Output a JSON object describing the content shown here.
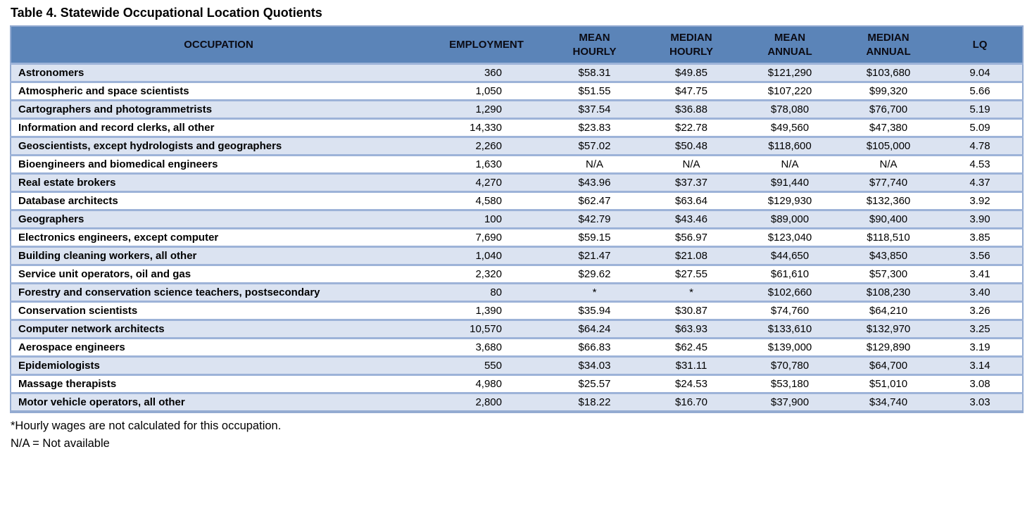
{
  "title": "Table 4. Statewide Occupational Location Quotients",
  "colors": {
    "header_bg": "#5b84b8",
    "alt_row_bg": "#dbe3f1",
    "row_border": "#9db3d8",
    "outer_border": "#94abd1",
    "text": "#000000"
  },
  "table": {
    "columns": [
      {
        "key": "occupation",
        "label": "OCCUPATION"
      },
      {
        "key": "employment",
        "label": "EMPLOYMENT"
      },
      {
        "key": "mean_hourly",
        "label": "MEAN\nHOURLY"
      },
      {
        "key": "median_hourly",
        "label": "MEDIAN\nHOURLY"
      },
      {
        "key": "mean_annual",
        "label": "MEAN\nANNUAL"
      },
      {
        "key": "median_annual",
        "label": "MEDIAN\nANNUAL"
      },
      {
        "key": "lq",
        "label": "LQ"
      }
    ],
    "rows": [
      [
        "Astronomers",
        "360",
        "$58.31",
        "$49.85",
        "$121,290",
        "$103,680",
        "9.04"
      ],
      [
        "Atmospheric and space scientists",
        "1,050",
        "$51.55",
        "$47.75",
        "$107,220",
        "$99,320",
        "5.66"
      ],
      [
        "Cartographers and photogrammetrists",
        "1,290",
        "$37.54",
        "$36.88",
        "$78,080",
        "$76,700",
        "5.19"
      ],
      [
        "Information and record clerks, all other",
        "14,330",
        "$23.83",
        "$22.78",
        "$49,560",
        "$47,380",
        "5.09"
      ],
      [
        "Geoscientists, except hydrologists and geographers",
        "2,260",
        "$57.02",
        "$50.48",
        "$118,600",
        "$105,000",
        "4.78"
      ],
      [
        "Bioengineers and biomedical engineers",
        "1,630",
        "N/A",
        "N/A",
        "N/A",
        "N/A",
        "4.53"
      ],
      [
        "Real estate brokers",
        "4,270",
        "$43.96",
        "$37.37",
        "$91,440",
        "$77,740",
        "4.37"
      ],
      [
        "Database architects",
        "4,580",
        "$62.47",
        "$63.64",
        "$129,930",
        "$132,360",
        "3.92"
      ],
      [
        "Geographers",
        "100",
        "$42.79",
        "$43.46",
        "$89,000",
        "$90,400",
        "3.90"
      ],
      [
        "Electronics engineers, except computer",
        "7,690",
        "$59.15",
        "$56.97",
        "$123,040",
        "$118,510",
        "3.85"
      ],
      [
        "Building cleaning workers, all other",
        "1,040",
        "$21.47",
        "$21.08",
        "$44,650",
        "$43,850",
        "3.56"
      ],
      [
        "Service unit operators, oil and gas",
        "2,320",
        "$29.62",
        "$27.55",
        "$61,610",
        "$57,300",
        "3.41"
      ],
      [
        "Forestry and conservation science teachers, postsecondary",
        "80",
        "*",
        "*",
        "$102,660",
        "$108,230",
        "3.40"
      ],
      [
        "Conservation scientists",
        "1,390",
        "$35.94",
        "$30.87",
        "$74,760",
        "$64,210",
        "3.26"
      ],
      [
        "Computer network architects",
        "10,570",
        "$64.24",
        "$63.93",
        "$133,610",
        "$132,970",
        "3.25"
      ],
      [
        "Aerospace engineers",
        "3,680",
        "$66.83",
        "$62.45",
        "$139,000",
        "$129,890",
        "3.19"
      ],
      [
        "Epidemiologists",
        "550",
        "$34.03",
        "$31.11",
        "$70,780",
        "$64,700",
        "3.14"
      ],
      [
        "Massage therapists",
        "4,980",
        "$25.57",
        "$24.53",
        "$53,180",
        "$51,010",
        "3.08"
      ],
      [
        "Motor vehicle operators, all other",
        "2,800",
        "$18.22",
        "$16.70",
        "$37,900",
        "$34,740",
        "3.03"
      ]
    ]
  },
  "footnotes": [
    "*Hourly wages are not calculated for this occupation.",
    "N/A = Not available"
  ]
}
